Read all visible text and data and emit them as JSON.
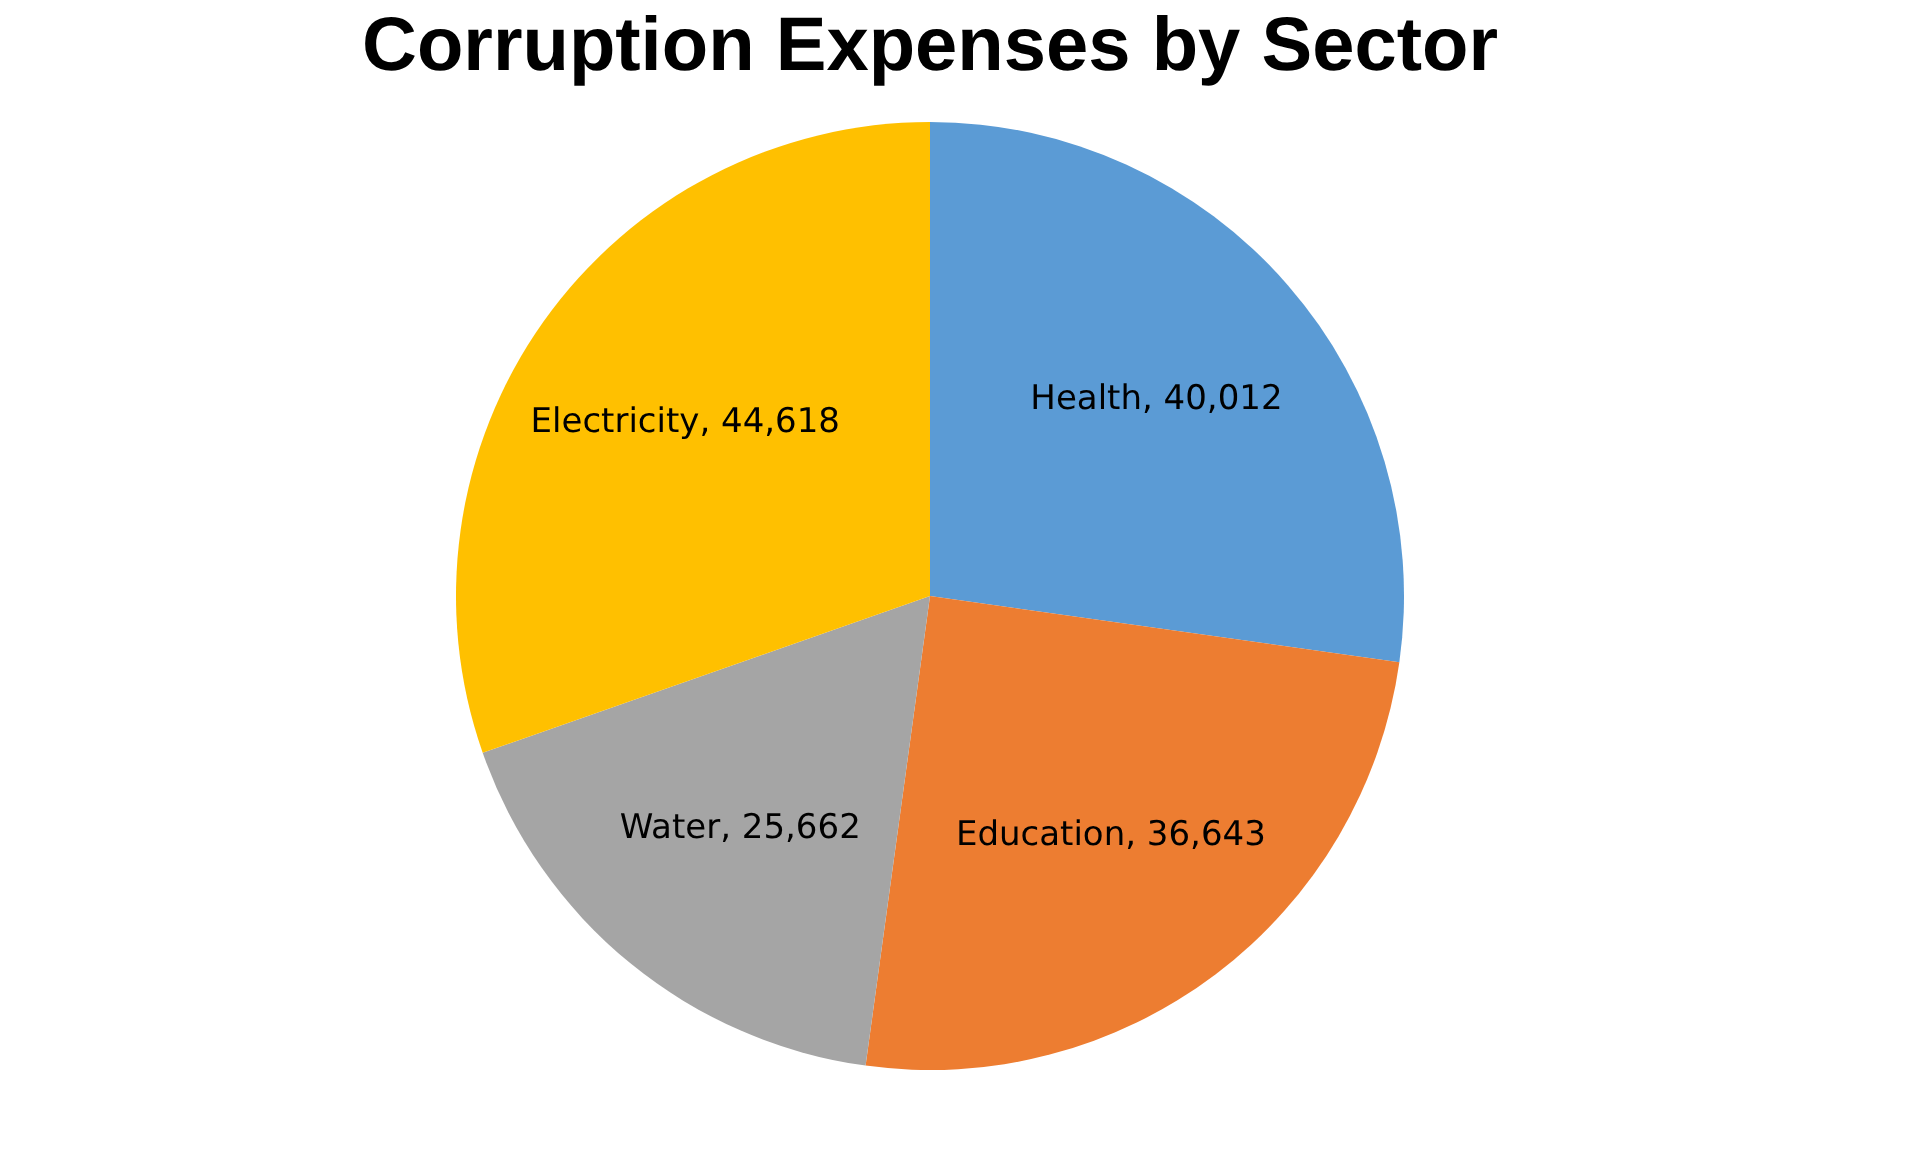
{
  "chart_data": {
    "type": "pie",
    "title": "Corruption Expenses by Sector",
    "categories": [
      "Health",
      "Education",
      "Water",
      "Electricity"
    ],
    "values": [
      40012,
      36643,
      25662,
      44618
    ],
    "value_labels": [
      "40,012",
      "36,643",
      "25,662",
      "44,618"
    ],
    "colors": [
      "#5b9bd5",
      "#ed7d31",
      "#a5a5a5",
      "#ffc000"
    ],
    "legend": false
  }
}
